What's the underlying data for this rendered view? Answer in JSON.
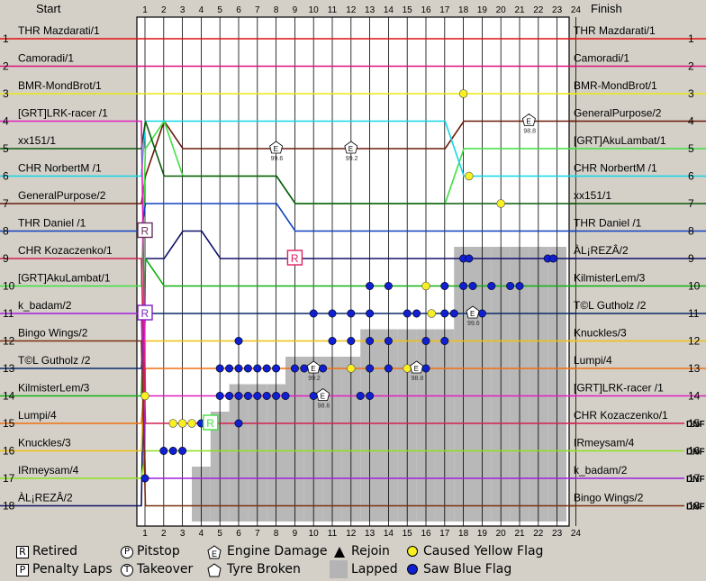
{
  "chart_data": {
    "type": "line",
    "title": "",
    "start_label": "Start",
    "finish_label": "Finish",
    "laps": [
      1,
      2,
      3,
      4,
      5,
      6,
      7,
      8,
      9,
      10,
      11,
      12,
      13,
      14,
      15,
      16,
      17,
      18,
      19,
      20,
      21,
      22,
      23,
      24
    ],
    "position_labels": [
      "1",
      "2",
      "3",
      "4",
      "5",
      "6",
      "7",
      "8",
      "9",
      "10",
      "11",
      "12",
      "13",
      "14",
      "15",
      "16",
      "17",
      "18"
    ],
    "start_order": [
      "THR Mazdarati/1",
      "Camoradi/1",
      "BMR-MondBrot/1",
      "[GRT]LRK-racer /1",
      "xx151/1",
      "CHR NorbertM /1",
      "GeneralPurpose/2",
      "THR Daniel /1",
      "CHR Kozaczenko/1",
      "[GRT]AkuLambat/1",
      "k_badam/2",
      "Bingo Wings/2",
      "T©L Gutholz /2",
      "KilmisterLem/3",
      "Lumpi/4",
      "Knuckles/3",
      "IRmeysam/4",
      "ÀL¡REZÂ/2"
    ],
    "finish_order": [
      "THR Mazdarati/1",
      "Camoradi/1",
      "BMR-MondBrot/1",
      "GeneralPurpose/2",
      "[GRT]AkuLambat/1",
      "CHR NorbertM /1",
      "xx151/1",
      "THR Daniel /1",
      "ÀL¡REZÂ/2",
      "KilmisterLem/3",
      "T©L Gutholz /2",
      "Knuckles/3",
      "Lumpi/4",
      "[GRT]LRK-racer /1",
      "CHR Kozaczenko/1",
      "IRmeysam/4",
      "k_badam/2",
      "Bingo Wings/2"
    ],
    "dnf_label": "DNF",
    "dnf_positions": [
      15,
      16,
      17,
      18
    ],
    "lapped_heights": [
      0,
      0,
      0,
      2,
      4,
      5,
      5,
      5,
      6,
      6,
      6,
      6,
      7,
      7,
      7,
      7,
      7,
      10,
      10,
      10,
      10,
      10,
      10,
      0
    ],
    "series": [
      {
        "driver": "THR Mazdarati/1",
        "color": "#e01010",
        "positions": [
          1,
          1,
          1,
          1,
          1,
          1,
          1,
          1,
          1,
          1,
          1,
          1,
          1,
          1,
          1,
          1,
          1,
          1,
          1,
          1,
          1,
          1,
          1,
          1,
          1
        ]
      },
      {
        "driver": "Camoradi/1",
        "color": "#e0107a",
        "positions": [
          2,
          2,
          2,
          2,
          2,
          2,
          2,
          2,
          2,
          2,
          2,
          2,
          2,
          2,
          2,
          2,
          2,
          2,
          2,
          2,
          2,
          2,
          2,
          2,
          2
        ]
      },
      {
        "driver": "BMR-MondBrot/1",
        "color": "#e8e810",
        "positions": [
          3,
          3,
          3,
          3,
          3,
          3,
          3,
          3,
          3,
          3,
          3,
          3,
          3,
          3,
          3,
          3,
          3,
          3,
          3,
          3,
          3,
          3,
          3,
          3,
          3
        ]
      },
      {
        "driver": "GeneralPurpose/2",
        "color": "#6b1a0a",
        "positions": [
          7,
          6,
          4,
          5,
          5,
          5,
          5,
          5,
          5,
          5,
          5,
          5,
          5,
          5,
          5,
          5,
          5,
          5,
          4,
          4,
          4,
          4,
          4,
          4,
          4
        ]
      },
      {
        "driver": "[GRT]AkuLambat/1",
        "color": "#40e040",
        "positions": [
          10,
          5,
          4,
          6,
          6,
          6,
          6,
          6,
          6,
          7,
          7,
          7,
          7,
          7,
          7,
          7,
          7,
          7,
          5,
          5,
          5,
          5,
          5,
          5,
          5
        ]
      },
      {
        "driver": "CHR NorbertM /1",
        "color": "#10d8e8",
        "positions": [
          6,
          4,
          4,
          4,
          4,
          4,
          4,
          4,
          4,
          4,
          4,
          4,
          4,
          4,
          4,
          4,
          4,
          4,
          6,
          6,
          6,
          6,
          6,
          6,
          6
        ]
      },
      {
        "driver": "xx151/1",
        "color": "#0a5a0a",
        "positions": [
          5,
          4,
          6,
          6,
          6,
          6,
          6,
          6,
          6,
          7,
          7,
          7,
          7,
          7,
          7,
          7,
          7,
          7,
          7,
          7,
          7,
          7,
          7,
          7,
          7
        ]
      },
      {
        "driver": "THR Daniel /1",
        "color": "#1040c0",
        "positions": [
          8,
          7,
          7,
          7,
          7,
          7,
          7,
          7,
          7,
          8,
          8,
          8,
          8,
          8,
          8,
          8,
          8,
          8,
          8,
          8,
          8,
          8,
          8,
          8,
          8
        ]
      },
      {
        "driver": "ÀL¡REZÂ/2",
        "color": "#10106a",
        "positions": [
          18,
          9,
          9,
          8,
          8,
          9,
          9,
          9,
          9,
          9,
          9,
          9,
          9,
          9,
          9,
          9,
          9,
          9,
          9,
          9,
          9,
          9,
          9,
          9,
          9
        ]
      },
      {
        "driver": "KilmisterLem/3",
        "color": "#10b010",
        "positions": [
          14,
          9,
          10,
          10,
          10,
          10,
          10,
          10,
          10,
          10,
          10,
          10,
          10,
          10,
          10,
          10,
          10,
          10,
          10,
          10,
          10,
          10,
          10,
          10,
          10
        ]
      },
      {
        "driver": "T©L Gutholz /2",
        "color": "#0a2a6a",
        "positions": [
          13,
          11,
          11,
          11,
          11,
          11,
          11,
          11,
          11,
          11,
          11,
          11,
          11,
          11,
          11,
          11,
          11,
          11,
          11,
          11,
          11,
          11,
          11,
          11,
          11
        ]
      },
      {
        "driver": "Knuckles/3",
        "color": "#f0c010",
        "positions": [
          16,
          12,
          12,
          12,
          12,
          12,
          12,
          12,
          12,
          12,
          12,
          12,
          12,
          12,
          12,
          12,
          12,
          12,
          12,
          12,
          12,
          12,
          12,
          12,
          12
        ]
      },
      {
        "driver": "Lumpi/4",
        "color": "#f07010",
        "positions": [
          15,
          13,
          13,
          13,
          13,
          13,
          13,
          13,
          13,
          13,
          13,
          13,
          13,
          13,
          13,
          13,
          13,
          13,
          13,
          13,
          13,
          13,
          13,
          13,
          13
        ]
      },
      {
        "driver": "[GRT]LRK-racer /1",
        "color": "#e020c0",
        "positions": [
          4,
          14,
          14,
          14,
          14,
          14,
          14,
          14,
          14,
          14,
          14,
          14,
          14,
          14,
          14,
          14,
          14,
          14,
          14,
          14,
          14,
          14,
          14,
          14,
          14
        ]
      },
      {
        "driver": "CHR Kozaczenko/1",
        "color": "#d02050",
        "positions": [
          9,
          15,
          15,
          15,
          15,
          15,
          15,
          15,
          15,
          15,
          15,
          15,
          15,
          15,
          15,
          15,
          15,
          15,
          15,
          15,
          15,
          15,
          15,
          15,
          15
        ]
      },
      {
        "driver": "IRmeysam/4",
        "color": "#90e020",
        "positions": [
          17,
          16,
          16,
          16,
          16,
          16,
          16,
          16,
          16,
          16,
          16,
          16,
          16,
          16,
          16,
          16,
          16,
          16,
          16,
          16,
          16,
          16,
          16,
          16,
          16
        ]
      },
      {
        "driver": "k_badam/2",
        "color": "#a020e0",
        "positions": [
          11,
          17,
          17,
          17,
          17,
          17,
          17,
          17,
          17,
          17,
          17,
          17,
          17,
          17,
          17,
          17,
          17,
          17,
          17,
          17,
          17,
          17,
          17,
          17,
          17
        ]
      },
      {
        "driver": "Bingo Wings/2",
        "color": "#7a3010",
        "positions": [
          12,
          18,
          18,
          18,
          18,
          18,
          18,
          18,
          18,
          18,
          18,
          18,
          18,
          18,
          18,
          18,
          18,
          18,
          18,
          18,
          18,
          18,
          18,
          18,
          18
        ]
      }
    ],
    "events": {
      "caused_yellow": [
        [
          18,
          3
        ],
        [
          18.3,
          6
        ],
        [
          20,
          7
        ],
        [
          16,
          10
        ],
        [
          16.3,
          11
        ],
        [
          3,
          15
        ],
        [
          2.5,
          15
        ],
        [
          3.5,
          15
        ],
        [
          12,
          13
        ],
        [
          15,
          13
        ],
        [
          1,
          14
        ]
      ],
      "saw_blue": [
        [
          18,
          9
        ],
        [
          18.3,
          9
        ],
        [
          22.5,
          9
        ],
        [
          22.8,
          9
        ],
        [
          13,
          10
        ],
        [
          14,
          10
        ],
        [
          17,
          10
        ],
        [
          18,
          10
        ],
        [
          18.5,
          10
        ],
        [
          19.5,
          10
        ],
        [
          20.5,
          10
        ],
        [
          21,
          10
        ],
        [
          10,
          11
        ],
        [
          11,
          11
        ],
        [
          12,
          11
        ],
        [
          13,
          11
        ],
        [
          15,
          11
        ],
        [
          15.5,
          11
        ],
        [
          17,
          11
        ],
        [
          17.5,
          11
        ],
        [
          18.5,
          11
        ],
        [
          19,
          11
        ],
        [
          6,
          12
        ],
        [
          11,
          12
        ],
        [
          12,
          12
        ],
        [
          13,
          12
        ],
        [
          14,
          12
        ],
        [
          16,
          12
        ],
        [
          17,
          12
        ],
        [
          5,
          13
        ],
        [
          5.5,
          13
        ],
        [
          6,
          13
        ],
        [
          6.5,
          13
        ],
        [
          7,
          13
        ],
        [
          7.5,
          13
        ],
        [
          8,
          13
        ],
        [
          9,
          13
        ],
        [
          9.5,
          13
        ],
        [
          10,
          13
        ],
        [
          10.5,
          13
        ],
        [
          13,
          13
        ],
        [
          14,
          13
        ],
        [
          15.5,
          13
        ],
        [
          16,
          13
        ],
        [
          5,
          14
        ],
        [
          5.5,
          14
        ],
        [
          6,
          14
        ],
        [
          6.5,
          14
        ],
        [
          7,
          14
        ],
        [
          7.5,
          14
        ],
        [
          8,
          14
        ],
        [
          8.5,
          14
        ],
        [
          10,
          14
        ],
        [
          12.5,
          14
        ],
        [
          13,
          14
        ],
        [
          4,
          15
        ],
        [
          6,
          15
        ],
        [
          2,
          16
        ],
        [
          2.5,
          16
        ],
        [
          3,
          16
        ],
        [
          1,
          17
        ]
      ],
      "engine_damage": [
        [
          8,
          5,
          "99.6"
        ],
        [
          12,
          5,
          "99.2"
        ],
        [
          21.5,
          4,
          "98.8"
        ],
        [
          10,
          13,
          "99.2"
        ],
        [
          15.5,
          13,
          "98.8"
        ],
        [
          10.5,
          14,
          "98.6"
        ],
        [
          18.5,
          11,
          "99.6"
        ]
      ],
      "retired": [
        [
          1,
          8,
          "#6a3060"
        ],
        [
          1,
          11,
          "#8020c0"
        ],
        [
          9,
          9,
          "#e02060"
        ],
        [
          4.5,
          15,
          "#40e040"
        ]
      ]
    },
    "legend": {
      "retired": "Retired",
      "penalty": "Penalty Laps",
      "pitstop": "Pitstop",
      "takeover": "Takeover",
      "engine": "Engine Damage",
      "tyre": "Tyre Broken",
      "rejoin": "Rejoin",
      "lapped": "Lapped",
      "yellow": "Caused Yellow Flag",
      "blue": "Saw Blue Flag"
    }
  }
}
